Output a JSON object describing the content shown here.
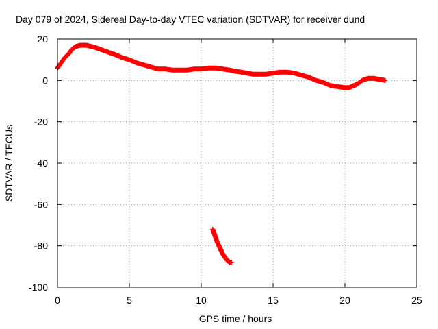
{
  "chart_data": {
    "type": "scatter",
    "title": "Day 079 of 2024, Sidereal Day-to-day VTEC variation (SDTVAR) for receiver dund",
    "xlabel": "GPS time / hours",
    "ylabel": "SDTVAR / TECUs",
    "xlim": [
      0,
      25
    ],
    "ylim": [
      -100,
      20
    ],
    "xticks": [
      0,
      5,
      10,
      15,
      20,
      25
    ],
    "yticks": [
      -100,
      -80,
      -60,
      -40,
      -20,
      0,
      20
    ],
    "grid": true,
    "marker": "plus",
    "color": "#ff0000",
    "series": [
      {
        "name": "main-track",
        "x": [
          0.0,
          0.2,
          0.5,
          0.8,
          1.0,
          1.3,
          1.6,
          2.0,
          2.3,
          2.6,
          3.0,
          3.4,
          3.8,
          4.2,
          4.5,
          5.0,
          5.5,
          6.0,
          6.5,
          7.0,
          7.5,
          8.0,
          8.5,
          9.0,
          9.5,
          10.0,
          10.5,
          11.0,
          11.5,
          12.0,
          12.3,
          12.8,
          13.2,
          13.6,
          14.0,
          14.5,
          15.0,
          15.5,
          16.0,
          16.5,
          17.0,
          17.5,
          18.0,
          18.5,
          19.0,
          19.5,
          20.0,
          20.3,
          20.6,
          20.8,
          21.2,
          21.6,
          22.0,
          22.4,
          22.8
        ],
        "y": [
          6,
          8,
          11,
          13,
          15,
          16.5,
          17,
          17,
          16.5,
          16,
          15,
          14,
          13,
          12,
          11,
          10,
          8.5,
          7.5,
          6.5,
          5.5,
          5.5,
          5,
          5,
          5,
          5.5,
          5.5,
          6,
          6,
          5.5,
          5,
          4.5,
          4,
          3.5,
          3,
          3,
          3,
          3.5,
          4,
          4,
          3.5,
          2.5,
          1.5,
          0,
          -1,
          -2.5,
          -3,
          -3.5,
          -3.5,
          -2.5,
          -2,
          0,
          1,
          1,
          0.5,
          0
        ]
      },
      {
        "name": "outlier-segment",
        "x": [
          10.8,
          10.9,
          11.0,
          11.1,
          11.2,
          11.3,
          11.4,
          11.5,
          11.6,
          11.7,
          11.8,
          11.9,
          12.0,
          12.1
        ],
        "y": [
          -72,
          -74,
          -76,
          -78,
          -79.5,
          -81,
          -82.5,
          -84,
          -85,
          -86,
          -87,
          -87.5,
          -88,
          -88
        ]
      }
    ]
  }
}
